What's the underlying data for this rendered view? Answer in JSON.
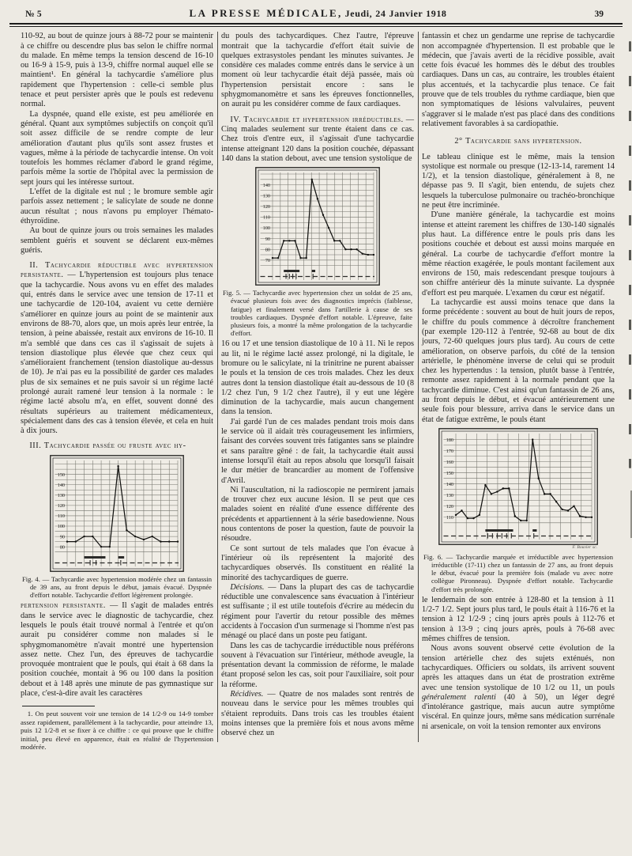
{
  "header": {
    "issue": "№ 5",
    "title": "LA PRESSE MÉDICALE,",
    "date": "Jeudi, 24 Janvier 1918",
    "page": "39"
  },
  "col1": {
    "p1": "110-92, au bout de quinze jours à 88-72 pour se maintenir à ce chiffre ou descendre plus bas selon le chiffre normal du malade. En même temps la tension descend de 16-10 ou 16-9 à 15-9, puis à 13-9, chiffre normal auquel elle se maintient¹. En général la tachycardie s'améliore plus rapidement que l'hypertension : celle-ci semble plus tenace et peut persister après que le pouls est redevenu normal.",
    "p2": "La dyspnée, quand elle existe, est peu améliorée en général. Quant aux symptômes subjectifs on conçoit qu'il soit assez difficile de se rendre compte de leur amélioration d'autant plus qu'ils sont assez frustes et vagues, même à la période de tachycardie intense. On voit toutefois les hommes réclamer d'abord le grand régime, parfois même la sortie de l'hôpital avec la permission de sept jours qui les intéresse surtout.",
    "p3": "L'effet de la digitale est nul ; le bromure semble agir parfois assez nettement ; le salicylate de soude ne donne aucun résultat ; nous n'avons pu employer l'hémato-éthyroïdine.",
    "p4": "Au bout de quinze jours ou trois semaines les malades semblent guéris et souvent se déclarent eux-mêmes guéris.",
    "sec2_label": "II. Tachycardie réductible avec hypertension persistante.",
    "sec2_text": " — L'hypertension est toujours plus tenace que la tachycardie. Nous avons vu en effet des malades qui, entrés dans le service avec une tension de 17-11 et une tachycardie de 120-104, avaient vu cette dernière s'améliorer en quinze jours au point de se maintenir aux environs de 88-70, alors que, un mois après leur entrée, la tension, à peine abaissée, restait aux environs de 16-10. Il m'a semblé que dans ces cas il s'agissait de sujets à tension diastolique plus élevée que chez ceux qui s'amélioraient franchement (tension diastolique au-dessus de 10). Je n'ai pas eu la possibilité de garder ces malades plus de six semaines et ne puis savoir si un régime lacté prolongé aurait ramené leur tension à la normale : le régime lacté absolu m'a, en effet, souvent donné des résultats supérieurs au traitement médicamenteux, spécialement dans des cas à tension élevée, et cela en huit à dix jours.",
    "sec3_label": "III. Tachycardie passée ou fruste avec hy-",
    "cont_label": "pertension persistante.",
    "cont_text": " — Il s'agit de malades entrés dans le service avec le diagnostic de tachycardie, chez lesquels le pouls était trouvé normal à l'entrée et qu'on aurait pu considérer comme non malades si le sphygmomanomètre n'avait montré une hypertension assez nette. Chez l'un, des épreuves de tachycardie provoquée montraient que le pouls, qui était à 68 dans la position couchée, montait à 96 ou 100 dans la position debout et à 148 après une minute de pas gymnastique sur place, c'est-à-dire avait les caractères",
    "footnote": "1. On peut souvent voir une tension de 14 1/2-9 ou 14-9 tomber assez rapidement, parallèlement à la tachycardie, pour atteindre 13, puis 12 1/2-8 et se fixer à ce chiffre : ce qui prouve que le chiffre initial, peu élevé en apparence, était en réalité de l'hypertension modérée."
  },
  "col2": {
    "p1": "du pouls des tachycardiques. Chez l'autre, l'épreuve montrait que la tachycardie d'effort était suivie de quelques extrasystoles pendant les minutes suivantes. Je considère ces malades comme entrés dans le service à un moment où leur tachycardie était déjà passée, mais où l'hypertension persistait encore : sans le sphygmomanomètre et sans les épreuves fonctionnelles, on aurait pu les considérer comme de faux cardiaques.",
    "sec4_label": "IV. Tachycardie et hypertension irréductibles.",
    "sec4_text": " — Cinq malades seulement sur trente étaient dans ce cas. Chez trois d'entre eux, il s'agissait d'une tachycardie intense atteignant 120 dans la position couchée, dépassant 140 dans la station debout, avec une tension systolique de",
    "p3": "16 ou 17 et une tension diastolique de 10 à 11. Ni le repos au lit, ni le régime lacté assez prolongé, ni la digitale, le bromure ou le salicylate, ni la trinitrine ne purent abaisser le pouls et la tension de ces trois malades. Chez les deux autres dont la tension diastolique était au-dessous de 10 (8 1/2 chez l'un, 9 1/2 chez l'autre), il y eut une légère diminution de la tachycardie, mais aucun changement dans la tension.",
    "p4": "J'ai gardé l'un de ces malades pendant trois mois dans le service où il aidait très courageusement les infirmiers, faisant des corvées souvent très fatigantes sans se plaindre et sans paraître gêné : de fait, la tachycardie était aussi intense lorsqu'il était au repos absolu que lorsqu'il faisait le dur métier de brancardier au moment de l'offensive d'Avril.",
    "p5": "Ni l'auscultation, ni la radioscopie ne permirent jamais de trouver chez eux aucune lésion. Il se peut que ces malades soient en réalité d'une essence différente des précédents et appartiennent à la série basedowienne. Nous nous contentons de poser la question, faute de pouvoir la résoudre.",
    "p6": "Ce sont surtout de tels malades que l'on évacue à l'intérieur où ils représentent la majorité des tachycardiques observés. Ils constituent en réalité la minorité des tachycardiques de guerre.",
    "dec_label": "Décisions.",
    "dec_text": " — Dans la plupart des cas de tachycardie réductible une convalescence sans évacuation à l'intérieur est suffisante ; il est utile toutefois d'écrire au médecin du régiment pour l'avertir du retour possible des mêmes accidents à l'occasion d'un surmenage si l'homme n'est pas ménagé ou placé dans un poste peu fatigant.",
    "p8": "Dans les cas de tachycardie irréductible nous préférons souvent à l'évacuation sur l'intérieur, méthode aveugle, la présentation devant la commission de réforme, le malade étant proposé selon les cas, soit pour l'auxiliaire, soit pour la réforme.",
    "rec_label": "Récidives.",
    "rec_text": " — Quatre de nos malades sont rentrés de nouveau dans le service pour les mêmes troubles qui s'étaient reproduits. Dans trois cas les troubles étaient moins intenses que la première fois et nous avons même observé chez un"
  },
  "col3": {
    "p1": "fantassin et chez un gendarme une reprise de tachycardie non accompagnée d'hypertension. Il est probable que le médecin, que j'avais averti de la récidive possible, avait cette fois évacué les hommes dès le début des troubles cardiaques. Dans un cas, au contraire, les troubles étaient plus accentués, et la tachycardie plus tenace. Ce fait prouve que de tels troubles du rythme cardiaque, bien que non symptomatiques de lésions valvulaires, peuvent s'aggraver si le malade n'est pas placé dans des conditions relativement favorables à sa cardiopathie.",
    "heading2": "2° Tachycardie sans hypertension.",
    "p2": "Le tableau clinique est le même, mais la tension systolique est normale ou presque (12-13-14, rarement 14 1/2), et la tension diastolique, généralement à 8, ne dépasse pas 9. Il s'agit, bien entendu, de sujets chez lesquels la tuberculose pulmonaire ou trachéo-bronchique ne peut être incriminée.",
    "p3": "D'une manière générale, la tachycardie est moins intense et atteint rarement les chiffres de 130-140 signalés plus haut. La différence entre le pouls pris dans les positions couchée et debout est aussi moins marquée en général. La courbe de tachycardie d'effort montre la même réaction exagérée, le pouls montant facilement aux environs de 150, mais redescendant presque toujours à son chiffre antérieur dès la minute suivante. La dyspnée d'effort est peu marquée. L'examen du cœur est négatif.",
    "p4": "La tachycardie est aussi moins tenace que dans la forme précédente : souvent au bout de huit jours de repos, le chiffre du pouls commence à décroître franchement (par exemple 120-112 à l'entrée, 92-68 au bout de dix jours, 72-60 quelques jours plus tard). Au cours de cette amélioration, on observe parfois, du côté de la tension artérielle, le phénomène inverse de celui qui se produit chez les hypertendus : la tension, plutôt basse à l'entrée, remonte assez rapidement à la normale pendant que la tachycardie diminue. C'est ainsi qu'un fantassin de 26 ans, au front depuis le début, et évacué antérieurement une seule fois pour blessure, arriva dans le service dans un état de fatigue extrême, le pouls étant",
    "p5": "le lendemain de son entrée à 128-80 et la tension à 11 1/2-7 1/2. Sept jours plus tard, le pouls était à 116-76 et la tension à 12 1/2-9 ; cinq jours après pouls à 112-76 et tension à 13-9 ; cinq jours après, pouls à 76-68 avec mêmes chiffres de tension.",
    "p6a": "Nous avons souvent observé cette évolution de la tension artérielle chez des sujets exténués, non tachycardiques. Officiers ou soldats, ils arrivent souvent après les attaques dans un état de prostration extrême avec une tension systolique de 10 1/2 ou 11, un pouls ",
    "p6i": "généralement ralenti",
    "p6b": " (40 à 50), un léger degré d'intolérance gastrique, mais aucun autre symptôme viscéral. En quinze jours, même sans médication surrénale ni arsenicale, on voit la tension remonter aux environs"
  },
  "chart_data": [
    {
      "type": "line",
      "fig": "Fig. 4",
      "caption": "Fig. 4. — Tachycardie avec hypertension modérée chez un fantassin de 39 ans, au front depuis le début, jamais évacué. Dyspnée d'effort notable. Tachycardie d'effort légèrement prolongée.",
      "ylabel": "pouls",
      "y_ticks": [
        150,
        140,
        130,
        120,
        110,
        100,
        90,
        80
      ],
      "ylim": [
        74,
        162
      ],
      "values": [
        85,
        85,
        90,
        90,
        80,
        80,
        158,
        96,
        90,
        87,
        90,
        85,
        85,
        85
      ],
      "bands": [
        [
          2,
          4.5
        ],
        [
          6,
          6.7
        ]
      ],
      "marks": [
        2.7,
        3.4,
        6.3
      ],
      "grid": true,
      "legend_position": "none"
    },
    {
      "type": "line",
      "fig": "Fig. 5",
      "caption": "Fig. 5. — Tachycardie avec hypertension chez un soldat de 25 ans, évacué plusieurs fois avec des diagnostics imprécis (faiblesse, fatigue) et finalement versé dans l'artillerie à cause de ses troubles cardiaques. Dyspnée d'effort notable. L'épreuve, faite plusieurs fois, a montré la même prolongation de la tachycardie d'effort.",
      "ylabel": "pouls",
      "y_ticks": [
        140,
        130,
        120,
        110,
        100,
        90,
        80,
        70
      ],
      "ylim": [
        64,
        150
      ],
      "values": [
        72,
        72,
        88,
        88,
        88,
        72,
        72,
        145,
        127,
        112,
        100,
        88,
        88,
        80,
        80,
        80,
        76,
        75,
        75
      ],
      "bands": [
        [
          2,
          4.8
        ],
        [
          7,
          7.6
        ]
      ],
      "marks": [
        2.4,
        3.0,
        3.6,
        4.2,
        7.2
      ],
      "grid": true,
      "legend_position": "none"
    },
    {
      "type": "line",
      "fig": "Fig. 6",
      "caption": "Fig. 6. — Tachycardie marquée et irréductible avec hypertension irréductible (17-11) chez un fantassin de 27 ans, au front depuis le début, évacué pour la première fois (malade vu avec notre collègue Pironneau). Dyspnée d'effort notable. Tachycardie d'effort très prolongée.",
      "ylabel": "pouls",
      "y_ticks": [
        180,
        170,
        160,
        150,
        140,
        130,
        120,
        110
      ],
      "ylim": [
        102,
        184
      ],
      "values": [
        112,
        116,
        109,
        109,
        112,
        139,
        131,
        133,
        136,
        136,
        111,
        107,
        107,
        180,
        145,
        131,
        131,
        124,
        117,
        116,
        120,
        111,
        110,
        110
      ],
      "bands": [
        [
          5,
          9.7
        ],
        [
          13,
          13.7
        ]
      ],
      "marks": [
        5.4,
        6.2,
        7.0,
        7.8,
        8.6,
        9.4,
        13.2
      ],
      "grid": true,
      "legend_position": "none",
      "engraver": "F. Bouvier sc."
    }
  ]
}
